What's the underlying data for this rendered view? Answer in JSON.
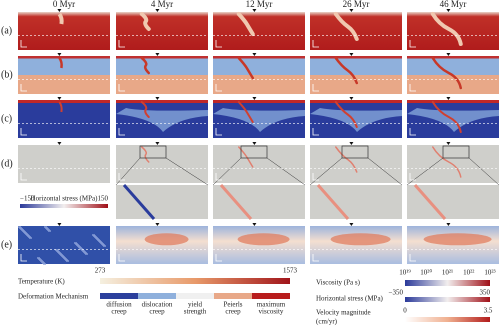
{
  "columns": [
    "0 Myr",
    "4 Myr",
    "12 Myr",
    "26 Myr",
    "46 Myr"
  ],
  "rows": [
    "(a)",
    "(b)",
    "(c)",
    "(d)",
    "(e)"
  ],
  "stress_inset": {
    "label": "Horizontal stress (MPa)",
    "min": "−150",
    "max": "150"
  },
  "legend": {
    "temperature": {
      "label": "Temperature (K)",
      "min": "273",
      "max": "1573"
    },
    "deformation": {
      "label": "Deformation Mechanism",
      "classes": [
        [
          "diffusion",
          "creep"
        ],
        [
          "dislocation",
          "creep"
        ],
        [
          "yield",
          "strength"
        ],
        [
          "Peierls",
          "creep"
        ],
        [
          "maximum",
          "viscosity"
        ]
      ]
    },
    "viscosity": {
      "label": "Viscosity (Pa s)",
      "ticks": [
        "10¹⁹",
        "10²⁰",
        "10²¹",
        "10²²",
        "10²³"
      ]
    },
    "stress": {
      "label": "Horizontal stress (MPa)",
      "min": "−350",
      "max": "350"
    },
    "velocity": {
      "label": [
        "Velocity magnitude",
        "(cm/yr)"
      ],
      "min": "0",
      "max": "3.5"
    }
  }
}
